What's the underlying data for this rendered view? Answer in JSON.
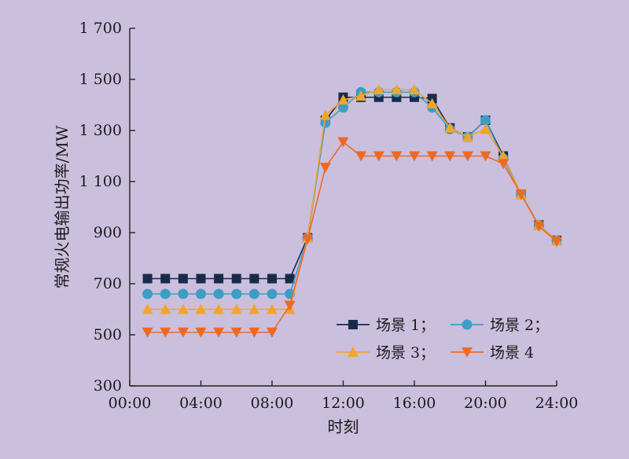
{
  "chart_data": {
    "type": "line",
    "xlabel": "时刻",
    "ylabel": "常规火电输出功率/MW",
    "x_tick_labels": [
      "00:00",
      "04:00",
      "08:00",
      "12:00",
      "16:00",
      "20:00",
      "24:00"
    ],
    "x_ticks": [
      0,
      4,
      8,
      12,
      16,
      20,
      24
    ],
    "y_tick_labels": [
      "300",
      "500",
      "700",
      "900",
      "1 100",
      "1 300",
      "1 500",
      "1 700"
    ],
    "y_ticks": [
      300,
      500,
      700,
      900,
      1100,
      1300,
      1500,
      1700
    ],
    "xlim": [
      0,
      24
    ],
    "ylim": [
      300,
      1700
    ],
    "legend_position": "bottom-right",
    "grid": false,
    "x": [
      1,
      2,
      3,
      4,
      5,
      6,
      7,
      8,
      9,
      10,
      11,
      12,
      13,
      14,
      15,
      16,
      17,
      18,
      19,
      20,
      21,
      22,
      23,
      24
    ],
    "series": [
      {
        "name": "场景 1；",
        "color": "#1a2a4a",
        "marker": "square",
        "values": [
          720,
          720,
          720,
          720,
          720,
          720,
          720,
          720,
          720,
          880,
          1340,
          1430,
          1430,
          1430,
          1430,
          1430,
          1425,
          1310,
          1275,
          1340,
          1200,
          1050,
          930,
          870
        ]
      },
      {
        "name": "场景 2；",
        "color": "#3f9dc4",
        "marker": "circle",
        "values": [
          660,
          660,
          660,
          660,
          660,
          660,
          660,
          660,
          660,
          880,
          1330,
          1390,
          1450,
          1450,
          1450,
          1450,
          1390,
          1305,
          1275,
          1340,
          1190,
          1050,
          930,
          870
        ]
      },
      {
        "name": "场景 3；",
        "color": "#f2a52b",
        "marker": "triangle-up",
        "values": [
          600,
          600,
          600,
          600,
          600,
          600,
          600,
          600,
          600,
          880,
          1360,
          1420,
          1435,
          1460,
          1460,
          1460,
          1405,
          1310,
          1275,
          1305,
          1200,
          1050,
          930,
          870
        ]
      },
      {
        "name": "场景 4",
        "color": "#ee6a24",
        "marker": "triangle-down",
        "values": [
          510,
          510,
          510,
          510,
          510,
          510,
          510,
          510,
          615,
          875,
          1155,
          1255,
          1200,
          1200,
          1200,
          1200,
          1200,
          1200,
          1200,
          1200,
          1170,
          1050,
          925,
          865
        ]
      }
    ]
  }
}
